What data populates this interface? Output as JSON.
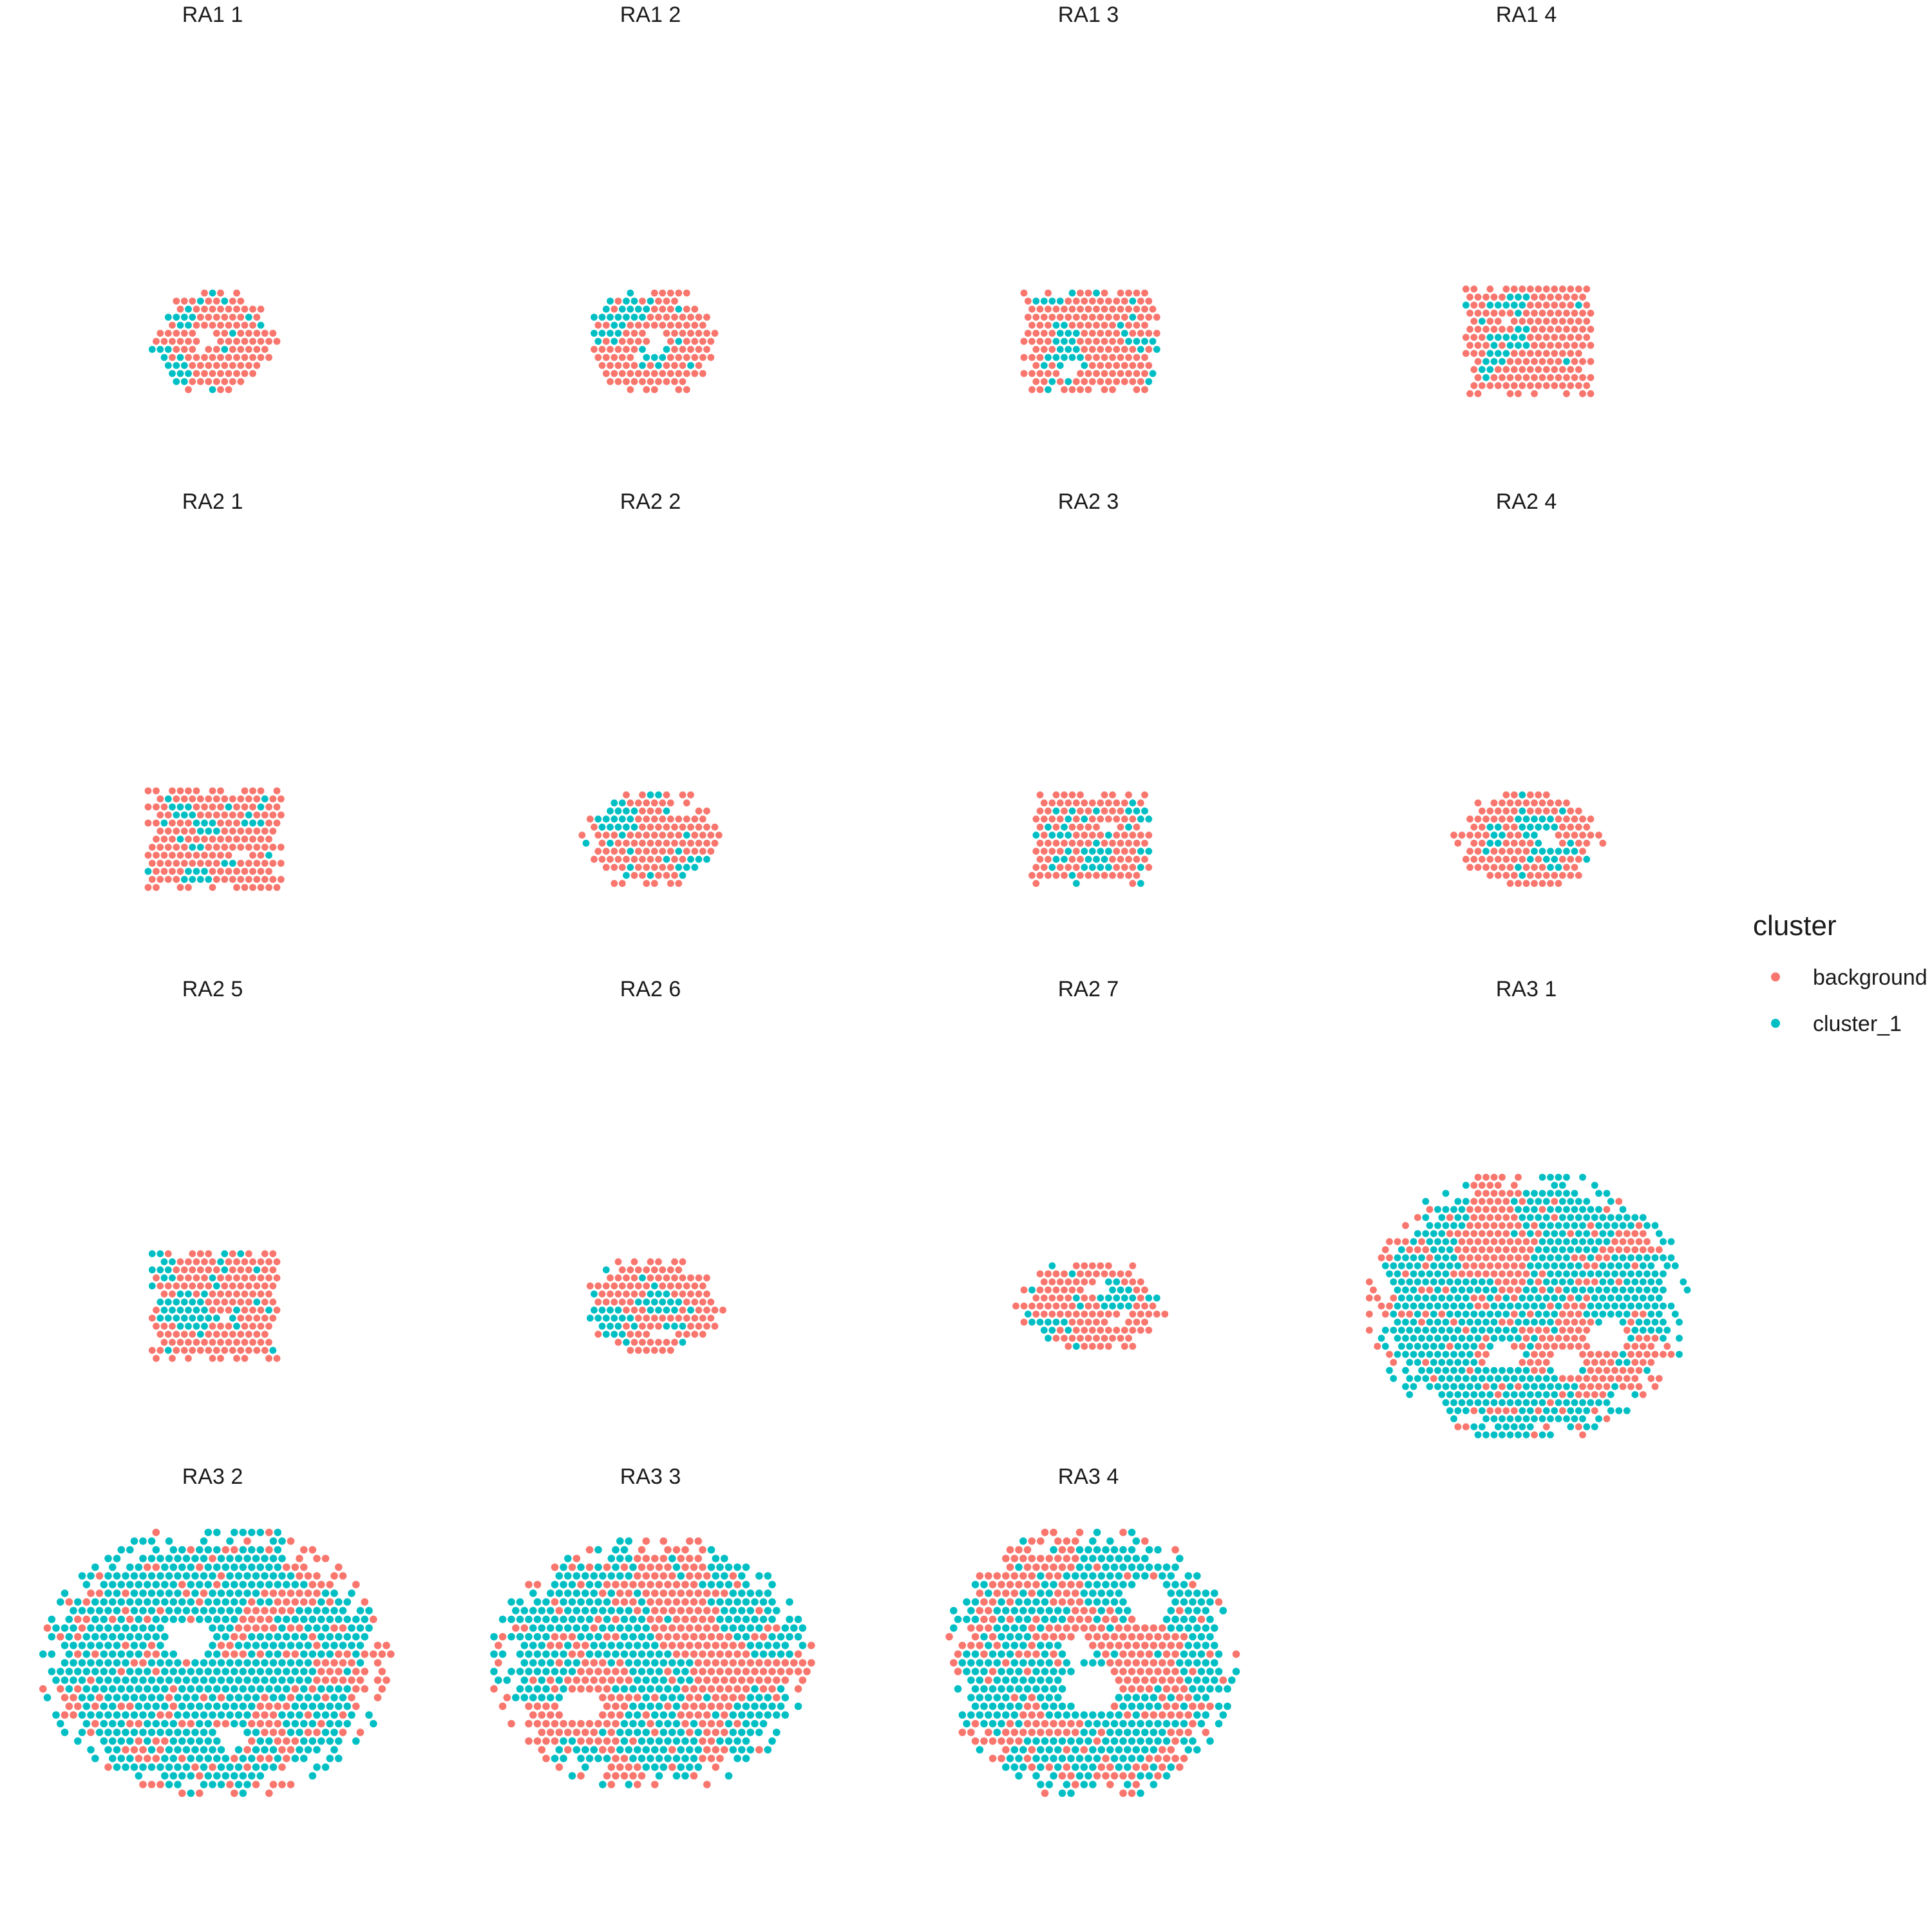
{
  "chart_data": {
    "type": "scatter",
    "legend": {
      "title": "cluster",
      "position": "right",
      "entries": [
        {
          "label": "background",
          "color": "#F8766D"
        },
        {
          "label": "cluster_1",
          "color": "#00BFC4"
        }
      ]
    },
    "grid": false,
    "axes": false,
    "panels": [
      {
        "title": "RA1_1",
        "label": "RA1  1",
        "shape": "round",
        "cols": 16,
        "rows": 15,
        "seed": 11,
        "cluster_fraction": 0.2
      },
      {
        "title": "RA1_2",
        "label": "RA1  2",
        "shape": "round",
        "cols": 17,
        "rows": 15,
        "seed": 12,
        "cluster_fraction": 0.2
      },
      {
        "title": "RA1_3",
        "label": "RA1  3",
        "shape": "box",
        "cols": 17,
        "rows": 13,
        "seed": 13,
        "cluster_fraction": 0.18
      },
      {
        "title": "RA1_4",
        "label": "RA1  4",
        "shape": "box",
        "cols": 16,
        "rows": 14,
        "seed": 14,
        "cluster_fraction": 0.22
      },
      {
        "title": "RA2_1",
        "label": "RA2  1",
        "shape": "box",
        "cols": 17,
        "rows": 13,
        "seed": 21,
        "cluster_fraction": 0.3
      },
      {
        "title": "RA2_2",
        "label": "RA2  2",
        "shape": "round",
        "cols": 18,
        "rows": 14,
        "seed": 22,
        "cluster_fraction": 0.28
      },
      {
        "title": "RA2_3",
        "label": "RA2  3",
        "shape": "box",
        "cols": 15,
        "rows": 12,
        "seed": 23,
        "cluster_fraction": 0.35
      },
      {
        "title": "RA2_4",
        "label": "RA2  4",
        "shape": "round",
        "cols": 19,
        "rows": 14,
        "seed": 24,
        "cluster_fraction": 0.3
      },
      {
        "title": "RA2_5",
        "label": "RA2  5",
        "shape": "box",
        "cols": 16,
        "rows": 14,
        "seed": 25,
        "cluster_fraction": 0.35
      },
      {
        "title": "RA2_6",
        "label": "RA2  6",
        "shape": "round",
        "cols": 18,
        "rows": 14,
        "seed": 26,
        "cluster_fraction": 0.33
      },
      {
        "title": "RA2_7",
        "label": "RA2  7",
        "shape": "round",
        "cols": 19,
        "rows": 13,
        "seed": 27,
        "cluster_fraction": 0.32
      },
      {
        "title": "RA3_1",
        "label": "RA3  1",
        "shape": "round",
        "cols": 40,
        "rows": 35,
        "seed": 31,
        "cluster_fraction": 0.3
      },
      {
        "title": "RA3_2",
        "label": "RA3  2",
        "shape": "round",
        "cols": 41,
        "rows": 33,
        "seed": 32,
        "cluster_fraction": 0.3
      },
      {
        "title": "RA3_3",
        "label": "RA3  3",
        "shape": "round",
        "cols": 37,
        "rows": 31,
        "seed": 33,
        "cluster_fraction": 0.3
      },
      {
        "title": "RA3_4",
        "label": "RA3  4",
        "shape": "round",
        "cols": 34,
        "rows": 33,
        "seed": 34,
        "cluster_fraction": 0.32
      }
    ]
  }
}
